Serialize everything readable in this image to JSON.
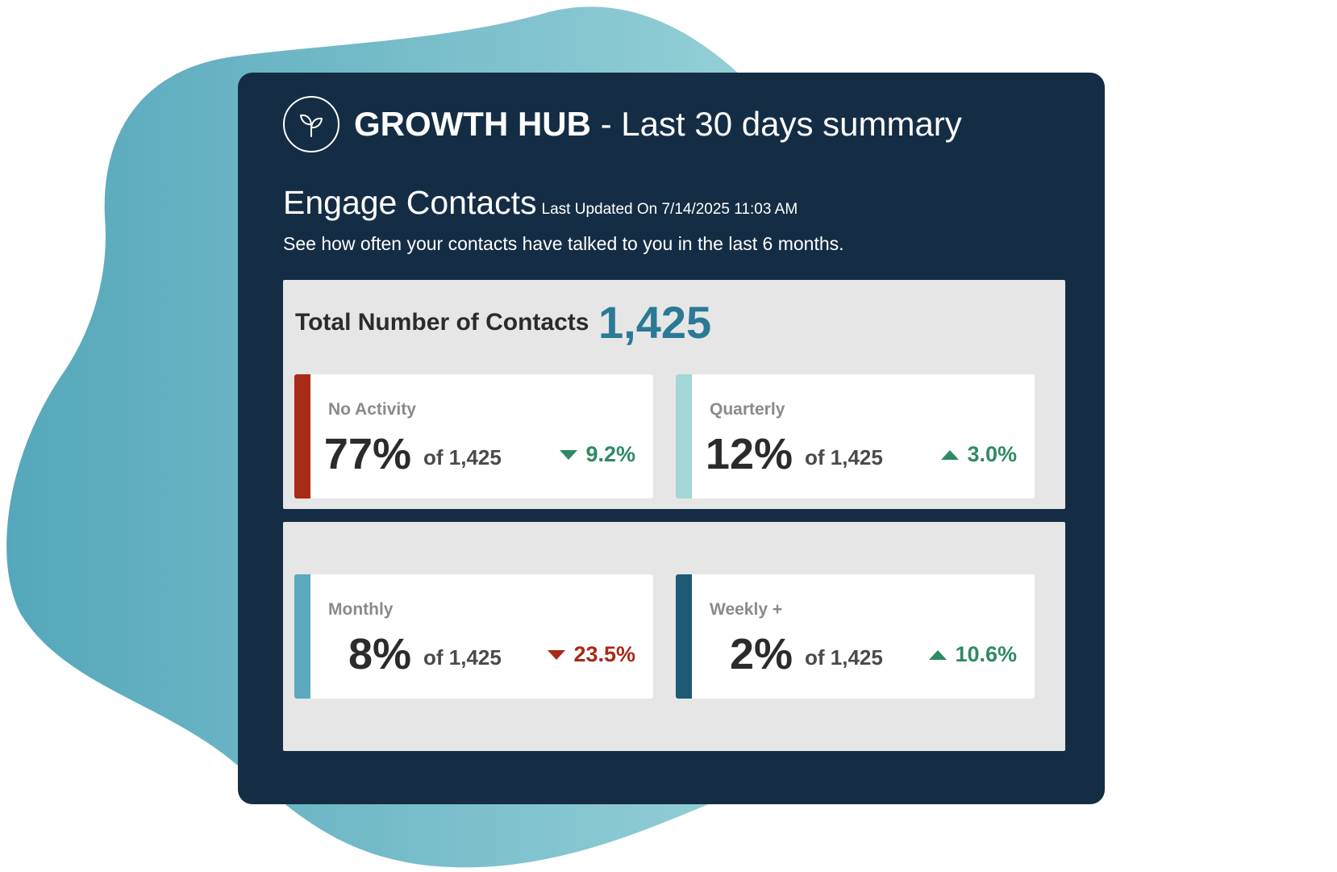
{
  "header": {
    "brand": "GROWTH HUB",
    "subtitle": " - Last 30 days summary",
    "logo_icon": "sprout-icon"
  },
  "section": {
    "title": "Engage Contacts",
    "last_updated": "Last Updated On 7/14/2025 11:03 AM",
    "description": "See how often your contacts have talked to you in the last 6 months."
  },
  "total": {
    "label": "Total Number of Contacts",
    "value": "1,425"
  },
  "cards": [
    {
      "label": "No Activity",
      "percent": "77%",
      "of_total": "of 1,425",
      "change": "9.2%",
      "direction": "down",
      "change_color": "#2f8a62",
      "accent_color": "#a82a17"
    },
    {
      "label": "Quarterly",
      "percent": "12%",
      "of_total": "of 1,425",
      "change": "3.0%",
      "direction": "up",
      "change_color": "#2f8a62",
      "accent_color": "#a3d6d6"
    },
    {
      "label": "Monthly",
      "percent": "8%",
      "of_total": "of 1,425",
      "change": "23.5%",
      "direction": "down",
      "change_color": "#a82a17",
      "accent_color": "#5ca9bd"
    },
    {
      "label": "Weekly +",
      "percent": "2%",
      "of_total": "of 1,425",
      "change": "10.6%",
      "direction": "up",
      "change_color": "#2f8a62",
      "accent_color": "#1d5a74"
    }
  ],
  "colors": {
    "panel_bg": "#152d44",
    "group_bg": "#e6e6e6",
    "total_value": "#2a7a96"
  }
}
